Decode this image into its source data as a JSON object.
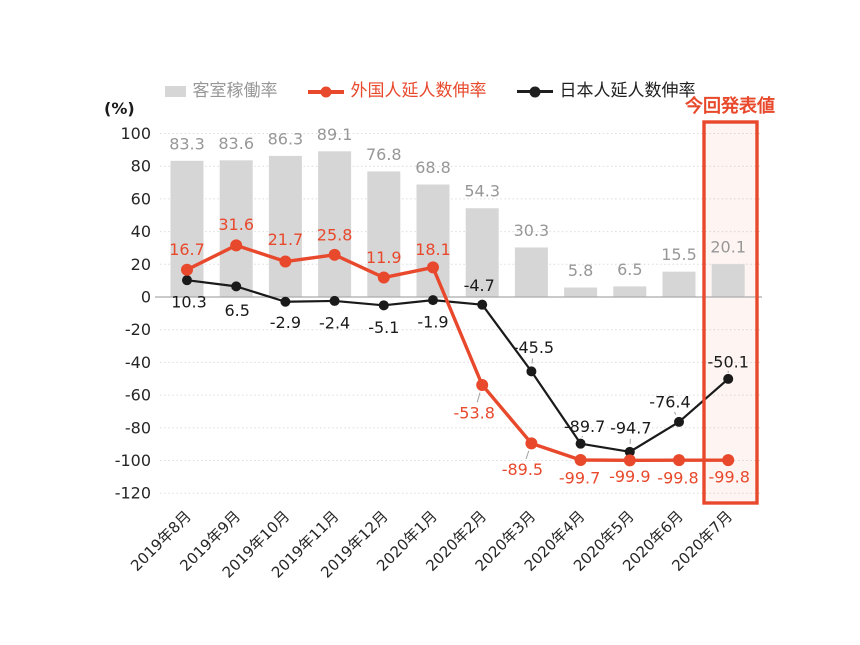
{
  "legend": [
    {
      "label": "客室稼働率",
      "marker": "bar-swatch",
      "color": "#d6d6d6",
      "text_color": "#979797"
    },
    {
      "label": "外国人延人数伸率",
      "marker": "line-dot",
      "color": "#e8492c",
      "text_color": "#e8492c"
    },
    {
      "label": "日本人延人数伸率",
      "marker": "line-dot",
      "color": "#1f1f1f",
      "text_color": "#1f1f1f"
    }
  ],
  "annotation": {
    "label": "今回発表値",
    "color": "#e8492c"
  },
  "chart_data": {
    "type": "combo",
    "title": "",
    "categories": [
      "2019年8月",
      "2019年9月",
      "2019年10月",
      "2019年11月",
      "2019年12月",
      "2020年1月",
      "2020年2月",
      "2020年3月",
      "2020年4月",
      "2020年5月",
      "2020年6月",
      "2020年7月"
    ],
    "series": [
      {
        "name": "客室稼働率",
        "type": "bar",
        "color": "#d6d6d6",
        "label_color": "#979797",
        "values": [
          83.3,
          83.6,
          86.3,
          89.1,
          76.8,
          68.8,
          54.3,
          30.3,
          5.8,
          6.5,
          15.5,
          20.1
        ]
      },
      {
        "name": "日本人延人数伸率",
        "type": "line",
        "color": "#1a1a1a",
        "values": [
          10.3,
          6.5,
          -2.9,
          -2.4,
          -5.1,
          -1.9,
          -4.7,
          -45.5,
          -89.7,
          -94.7,
          -76.4,
          -50.1
        ],
        "label_offsets": [
          [
            2,
            22
          ],
          [
            1,
            24
          ],
          [
            0,
            21
          ],
          [
            0,
            22
          ],
          [
            0,
            22
          ],
          [
            0,
            22
          ],
          [
            -3,
            -19
          ],
          [
            2,
            -24
          ],
          [
            4,
            -17
          ],
          [
            1,
            -24
          ],
          [
            -9,
            -20
          ],
          [
            0,
            -17
          ]
        ],
        "leader_indices": [
          7,
          8,
          9,
          10,
          11
        ]
      },
      {
        "name": "外国人延人数伸率",
        "type": "line",
        "color": "#e8492c",
        "values": [
          16.7,
          31.6,
          21.7,
          25.8,
          11.9,
          18.1,
          -53.8,
          -89.5,
          -99.7,
          -99.9,
          -99.8,
          -99.8
        ],
        "label_offsets": [
          [
            0,
            -20
          ],
          [
            0,
            -21
          ],
          [
            0,
            -22
          ],
          [
            0,
            -20
          ],
          [
            0,
            -20
          ],
          [
            0,
            -18
          ],
          [
            -8,
            28
          ],
          [
            -9,
            26
          ],
          [
            -1,
            18
          ],
          [
            0,
            16
          ],
          [
            -1,
            18
          ],
          [
            1,
            17
          ]
        ],
        "leader_indices": [
          6,
          7
        ]
      }
    ],
    "y_axis": {
      "unit_label": "(%)",
      "ticks": [
        100,
        80,
        60,
        40,
        20,
        0,
        -20,
        -40,
        -60,
        -80,
        -100,
        -120
      ],
      "min": -120,
      "max": 100
    },
    "highlight": {
      "category_index": 11,
      "label": "今回発表値",
      "box_color": "#e8492c"
    },
    "grid": "dotted-horizontal",
    "legend_position": "top"
  }
}
